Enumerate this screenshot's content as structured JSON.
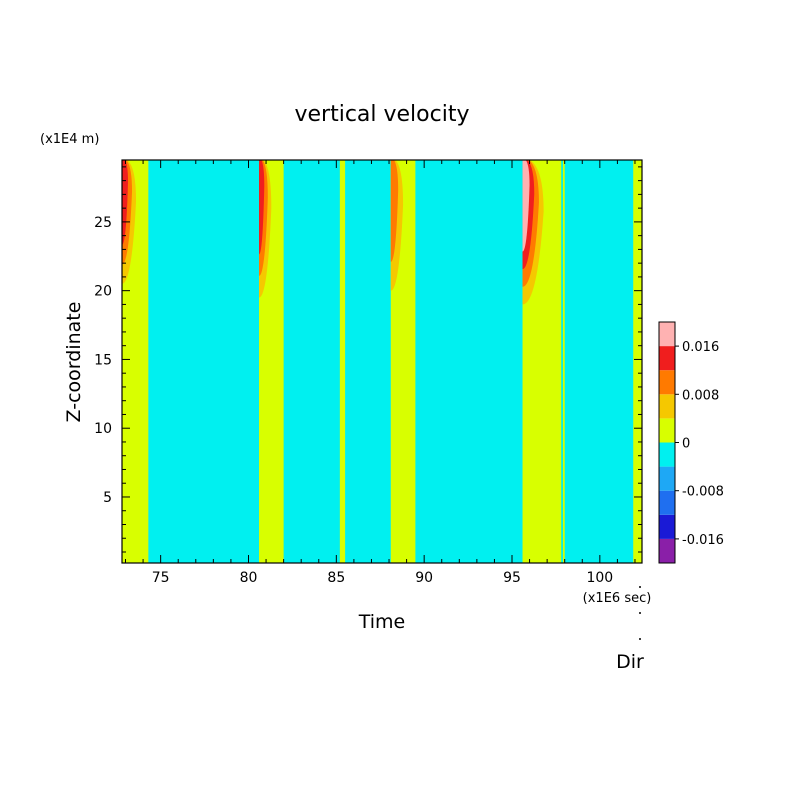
{
  "chart_data": {
    "type": "heatmap",
    "title": "vertical velocity",
    "xlabel": "Time",
    "ylabel": "Z-coordinate",
    "x_unit": "(x1E6 sec)",
    "y_unit": "(x1E4 m)",
    "direction_label": "Dir",
    "xlim": [
      72.8,
      102.4
    ],
    "ylim": [
      0.2,
      29.5
    ],
    "x_ticks": [
      75,
      80,
      85,
      90,
      95,
      100
    ],
    "y_ticks": [
      5,
      10,
      15,
      20,
      25
    ],
    "colorbar": {
      "levels": [
        -0.02,
        -0.016,
        -0.012,
        -0.008,
        -0.004,
        0,
        0.004,
        0.008,
        0.012,
        0.016,
        0.02
      ],
      "colors": [
        "#8a1fa8",
        "#1a1ad6",
        "#1f6ff0",
        "#1ea8f5",
        "#00f0f0",
        "#d8ff00",
        "#f5c800",
        "#ff7a00",
        "#f01e1e",
        "#ffb2b2"
      ],
      "tick_labels": [
        "0.016",
        "0.008",
        "0",
        "-0.008",
        "-0.016"
      ],
      "tick_values": [
        0.016,
        0.008,
        0,
        -0.008,
        -0.016
      ]
    },
    "upward_bands": [
      {
        "x_start": 72.8,
        "x_end": 74.3,
        "z_top": 29.5
      },
      {
        "x_start": 80.6,
        "x_end": 82.0,
        "z_top": 29.5
      },
      {
        "x_start": 85.2,
        "x_end": 85.5,
        "z_top": 29.5
      },
      {
        "x_start": 88.1,
        "x_end": 89.5,
        "z_top": 29.5
      },
      {
        "x_start": 95.6,
        "x_end": 97.8,
        "z_top": 29.5
      },
      {
        "x_start": 97.9,
        "x_end": 98.0,
        "z_top": 29.5
      },
      {
        "x_start": 101.9,
        "x_end": 102.4,
        "z_top": 29.5
      }
    ],
    "peaks": [
      {
        "x_start": 72.8,
        "x_end": 73.6,
        "z_bottom": 20.5,
        "z_top": 29.5,
        "max": 0.014
      },
      {
        "x_start": 80.6,
        "x_end": 81.3,
        "z_bottom": 19.5,
        "z_top": 29.5,
        "max": 0.016
      },
      {
        "x_start": 88.1,
        "x_end": 88.8,
        "z_bottom": 20.0,
        "z_top": 29.5,
        "max": 0.012
      },
      {
        "x_start": 95.6,
        "x_end": 96.8,
        "z_bottom": 19.0,
        "z_top": 29.5,
        "max": 0.02
      }
    ],
    "background_value": -0.002
  }
}
